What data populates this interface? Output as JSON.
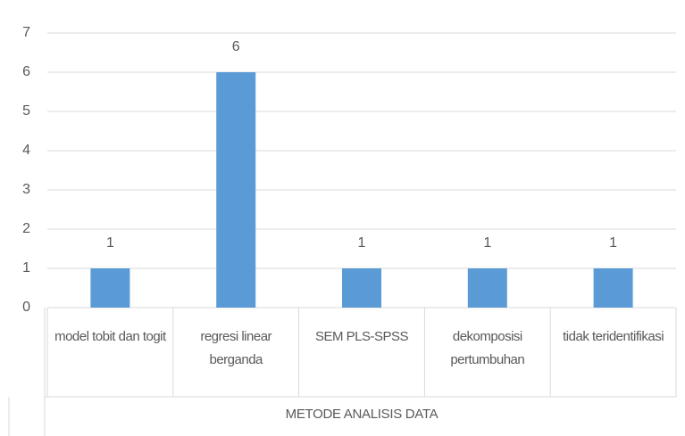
{
  "chart_data": {
    "type": "bar",
    "x_label": "METODE ANALISIS DATA",
    "categories": [
      "model tobit dan togit",
      "regresi linear berganda",
      "SEM PLS-SPSS",
      "dekomposisi pertumbuhan",
      "tidak teridentifikasi"
    ],
    "values": [
      1,
      6,
      1,
      1,
      1
    ],
    "color": "#5b9bd5",
    "ylim": [
      0,
      7
    ],
    "yticks": [
      0,
      1,
      2,
      3,
      4,
      5,
      6,
      7
    ],
    "grid": true
  }
}
